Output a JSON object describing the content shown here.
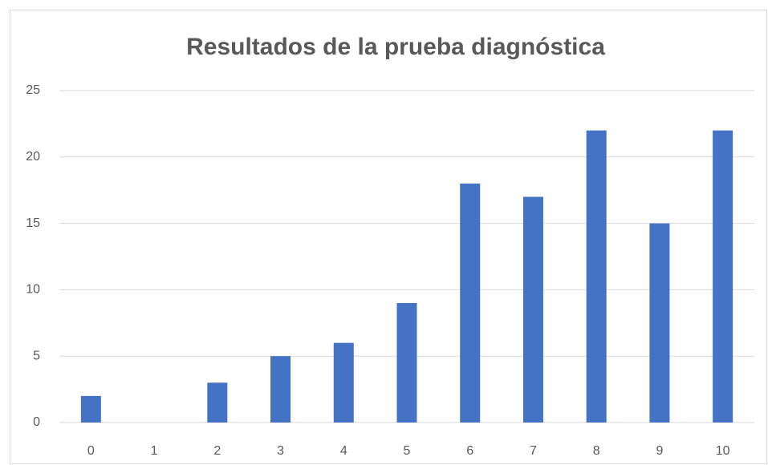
{
  "chart_data": {
    "type": "bar",
    "title": "Resultados de la prueba diagnóstica",
    "categories": [
      "0",
      "1",
      "2",
      "3",
      "4",
      "5",
      "6",
      "7",
      "8",
      "9",
      "10"
    ],
    "values": [
      2,
      0,
      3,
      5,
      6,
      9,
      18,
      17,
      22,
      15,
      22
    ],
    "color": "#4472c4",
    "ylim": [
      0,
      25
    ],
    "yticks": [
      0,
      5,
      10,
      15,
      20,
      25
    ],
    "grid": true
  }
}
